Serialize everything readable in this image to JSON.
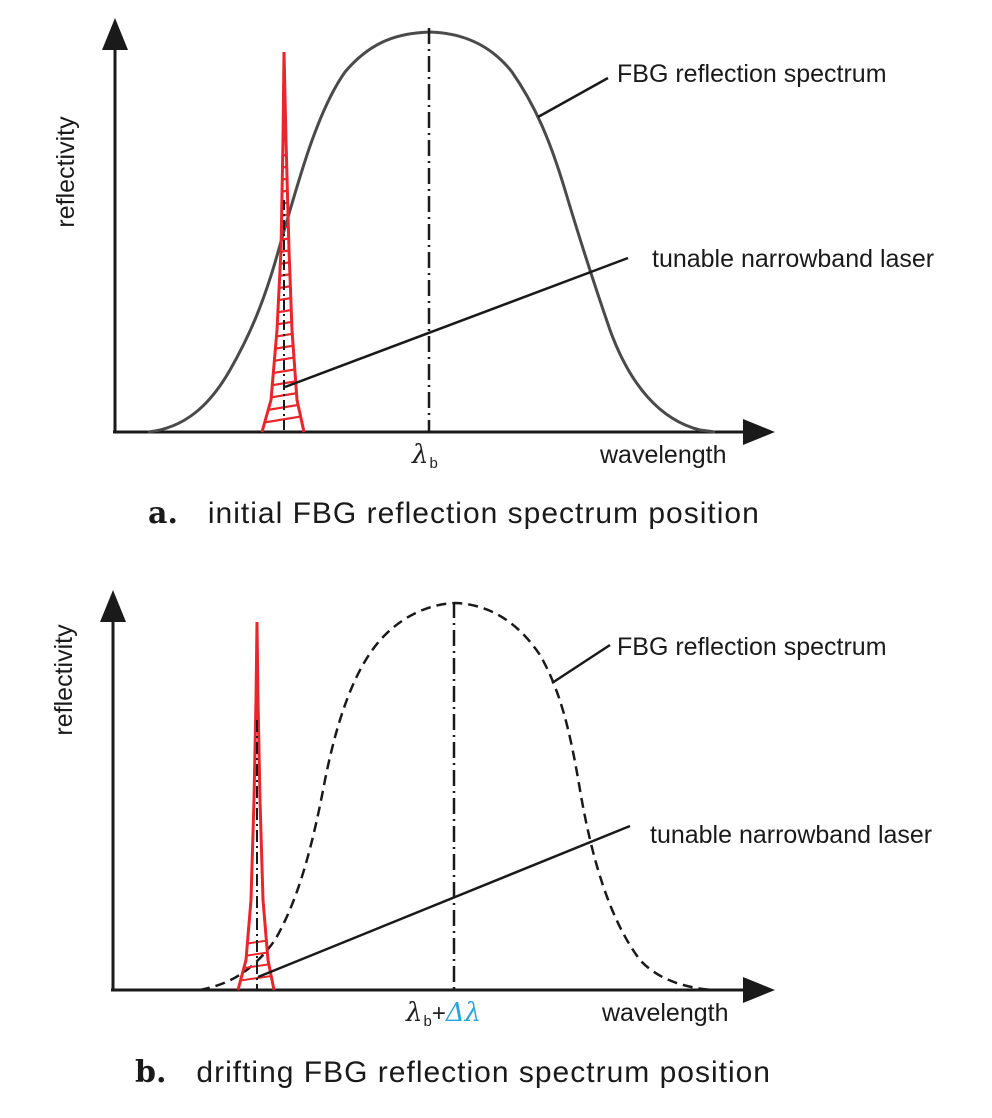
{
  "panel_a": {
    "y_axis_label": "reflectivity",
    "x_axis_label": "wavelength",
    "curve_label": "FBG reflection spectrum",
    "laser_label": "tunable narrowband laser",
    "center_symbol": "λ",
    "center_subscript": "b",
    "caption_letter": "a.",
    "caption_text": "initial FBG reflection spectrum position"
  },
  "panel_b": {
    "y_axis_label": "reflectivity",
    "x_axis_label": "wavelength",
    "curve_label": "FBG reflection spectrum",
    "laser_label": "tunable narrowband laser",
    "center_symbol": "λ",
    "center_subscript": "b",
    "center_plus": "+",
    "center_delta": "Δλ",
    "caption_letter": "b.",
    "caption_text": "drifting FBG reflection spectrum position"
  },
  "colors": {
    "fbg_curve": "#4a4a4a",
    "laser_peak": "#e8262b",
    "delta_text": "#2ba6d9",
    "axis": "#1a1a1a"
  }
}
